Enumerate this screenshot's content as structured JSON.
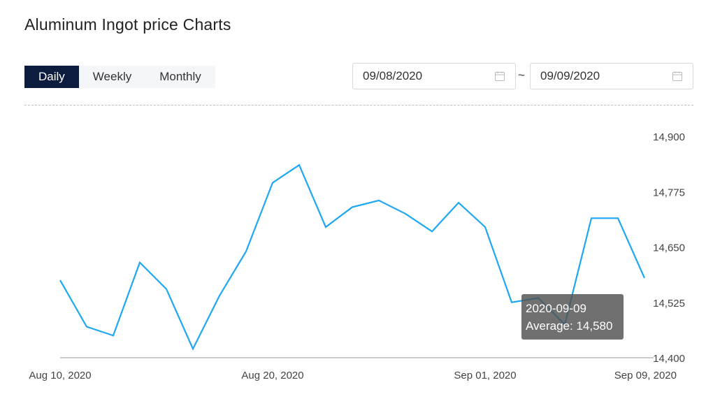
{
  "page": {
    "title": "Aluminum Ingot price Charts"
  },
  "tabs": [
    {
      "label": "Daily",
      "active": true
    },
    {
      "label": "Weekly",
      "active": false
    },
    {
      "label": "Monthly",
      "active": false
    }
  ],
  "date_range": {
    "from": "09/08/2020",
    "separator": "~",
    "to": "09/09/2020",
    "icon": "calendar-icon"
  },
  "tooltip": {
    "date": "2020-09-09",
    "label": "Average: 14,580"
  },
  "colors": {
    "line": "#1ea7f2",
    "active_tab_bg": "#0b1c3f",
    "axis": "#999999"
  },
  "chart_data": {
    "type": "line",
    "title": "",
    "xlabel": "",
    "ylabel": "",
    "ylim": [
      14400,
      14900
    ],
    "yticks": [
      14400,
      14525,
      14650,
      14775,
      14900
    ],
    "ytick_labels": [
      "14,400",
      "14,525",
      "14,650",
      "14,775",
      "14,900"
    ],
    "xtick_labels": [
      {
        "index": 0,
        "label": "Aug 10, 2020"
      },
      {
        "index": 8,
        "label": "Aug 20, 2020"
      },
      {
        "index": 16,
        "label": "Sep 01, 2020"
      },
      {
        "index": 22,
        "label": "Sep 09, 2020"
      }
    ],
    "grid": false,
    "x": [
      "2020-08-10",
      "2020-08-11",
      "2020-08-12",
      "2020-08-13",
      "2020-08-14",
      "2020-08-17",
      "2020-08-18",
      "2020-08-19",
      "2020-08-20",
      "2020-08-21",
      "2020-08-24",
      "2020-08-25",
      "2020-08-26",
      "2020-08-27",
      "2020-08-28",
      "2020-08-31",
      "2020-09-01",
      "2020-09-02",
      "2020-09-03",
      "2020-09-04",
      "2020-09-07",
      "2020-09-08",
      "2020-09-09"
    ],
    "series": [
      {
        "name": "",
        "values": [
          14575,
          14470,
          14450,
          14615,
          14555,
          14420,
          14540,
          14640,
          14795,
          14835,
          14695,
          14740,
          14755,
          14725,
          14685,
          14750,
          14695,
          14525,
          14535,
          14475,
          14715,
          14715,
          14580
        ]
      }
    ]
  }
}
